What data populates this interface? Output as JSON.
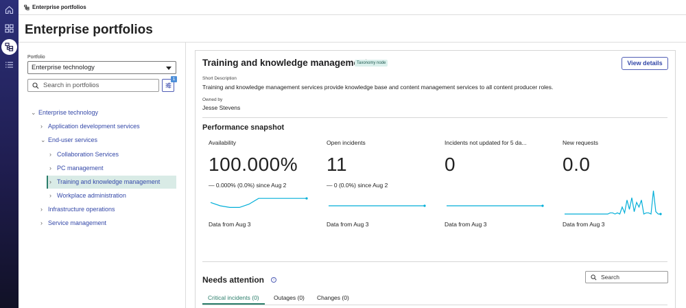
{
  "breadcrumb": {
    "label": "Enterprise portfolios"
  },
  "page": {
    "title": "Enterprise portfolios"
  },
  "nav_rail": [
    {
      "icon": "home-icon"
    },
    {
      "icon": "grid-icon"
    },
    {
      "icon": "portfolio-tree-icon",
      "active": true
    },
    {
      "icon": "list-icon"
    }
  ],
  "left_panel": {
    "portfolio_label": "Portfolio",
    "portfolio_value": "Enterprise technology",
    "search_placeholder": "Search in portfolios",
    "filter_badge": "1",
    "tree": [
      {
        "label": "Enterprise technology",
        "expanded": true,
        "level": 0
      },
      {
        "label": "Application development services",
        "expanded": false,
        "level": 1
      },
      {
        "label": "End-user services",
        "expanded": true,
        "level": 1
      },
      {
        "label": "Collaboration Services",
        "expanded": false,
        "level": 2
      },
      {
        "label": "PC management",
        "expanded": false,
        "level": 2
      },
      {
        "label": "Training and knowledge management",
        "expanded": false,
        "level": 2,
        "selected": true
      },
      {
        "label": "Workplace administration",
        "expanded": false,
        "level": 2
      },
      {
        "label": "Infrastructure operations",
        "expanded": false,
        "level": 1
      },
      {
        "label": "Service management",
        "expanded": false,
        "level": 1
      }
    ]
  },
  "detail": {
    "title": "Training and knowledge management",
    "tag": "Taxonomy node",
    "view_details": "View details",
    "short_desc_label": "Short Description",
    "short_desc": "Training and knowledge management services provide knowledge base and content management services to all content producer roles.",
    "owned_by_label": "Owned by",
    "owned_by": "Jesse Stevens"
  },
  "performance": {
    "title": "Performance snapshot",
    "metrics": [
      {
        "label": "Availability",
        "value": "100.000%",
        "delta": "— 0.000% (0.0%) since Aug 2",
        "data_from": "Data from Aug 3",
        "trend": [
          0.7,
          0.5,
          0.4,
          0.4,
          0.6,
          0.95,
          0.95,
          0.95,
          0.95,
          0.95,
          0.95
        ]
      },
      {
        "label": "Open incidents",
        "value": "11",
        "delta": "— 0 (0.0%) since Aug 2",
        "data_from": "Data from Aug 3",
        "trend": [
          0.5,
          0.5,
          0.5,
          0.5,
          0.5,
          0.5,
          0.5,
          0.5,
          0.5,
          0.5,
          0.5
        ]
      },
      {
        "label": "Incidents not updated for 5 da...",
        "value": "0",
        "delta": "",
        "data_from": "Data from Aug 3",
        "trend": [
          0.5,
          0.5,
          0.5,
          0.5,
          0.5,
          0.5,
          0.5,
          0.5,
          0.5,
          0.5,
          0.5
        ]
      },
      {
        "label": "New requests",
        "value": "0.0",
        "delta": "",
        "data_from": "Data from Aug 3",
        "trend": [
          0,
          0,
          0,
          0,
          0,
          0,
          0,
          0,
          0,
          0,
          0,
          0,
          0,
          0,
          0,
          0,
          0,
          0,
          0,
          0.05,
          0.05,
          0,
          0.05,
          0,
          0.3,
          0.05,
          0.6,
          0.2,
          0.7,
          0.1,
          0.5,
          0.3,
          0.6,
          0,
          0.05,
          0.05,
          0,
          1.0,
          0.1,
          0,
          0
        ]
      }
    ]
  },
  "attention": {
    "title": "Needs attention",
    "search_placeholder": "Search",
    "tabs": [
      {
        "label": "Critical incidents (0)",
        "active": true
      },
      {
        "label": "Outages (0)",
        "active": false
      },
      {
        "label": "Changes (0)",
        "active": false
      }
    ]
  },
  "colors": {
    "accent": "#3448a8",
    "teal": "#2a7d6a",
    "spark": "#00aed8",
    "rail_top": "#2c2f78",
    "rail_bottom": "#111126"
  }
}
